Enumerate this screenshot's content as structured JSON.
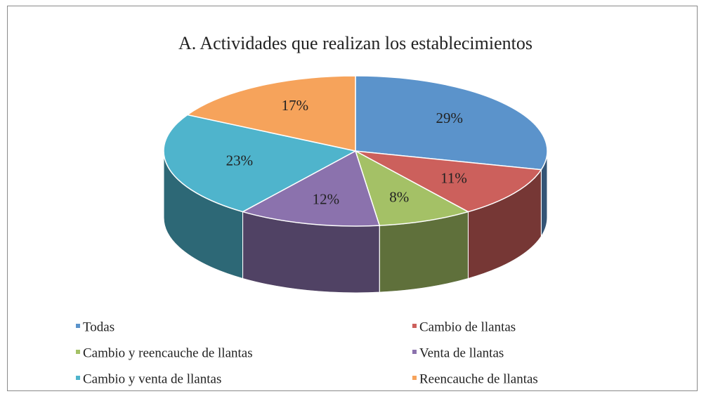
{
  "chart_data": {
    "type": "pie3d",
    "title": "A. Actividades que realizan los establecimientos",
    "categories": [
      "Todas",
      "Cambio de llantas",
      "Cambio y reencauche de llantas",
      "Venta de llantas",
      "Cambio y venta de llantas",
      "Reencauche de llantas"
    ],
    "values": [
      29,
      11,
      8,
      12,
      23,
      17
    ],
    "value_labels": [
      "29%",
      "11%",
      "8%",
      "12%",
      "23%",
      "17%"
    ],
    "colors": [
      "#5b93cb",
      "#cc605c",
      "#a4c166",
      "#8b72ad",
      "#4fb4cc",
      "#f6a35b"
    ],
    "legend": "bottom"
  }
}
